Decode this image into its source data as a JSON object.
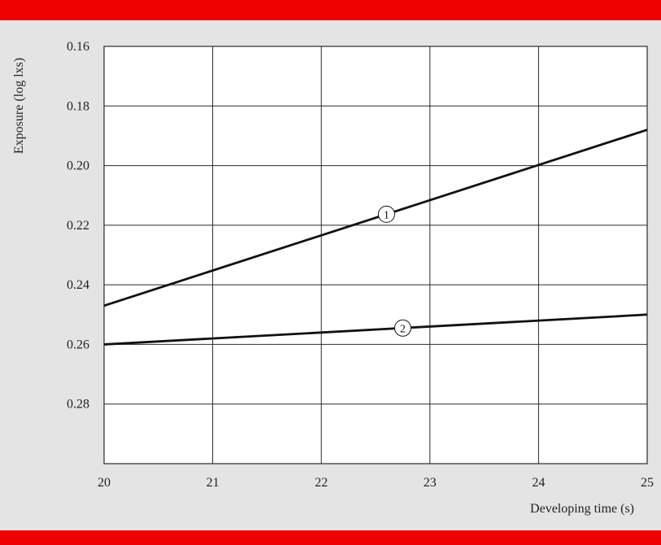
{
  "colors": {
    "banner": "#ee0000",
    "background": "#e4e4e4",
    "plot_background": "#ffffff",
    "grid": "#2a2a2a",
    "line": "#111111"
  },
  "chart_data": {
    "type": "line",
    "title": "",
    "xlabel": "Developing time (s)",
    "ylabel": "Exposure (log lxs)",
    "xlim": [
      20,
      25
    ],
    "ylim": [
      0.3,
      0.16
    ],
    "y_inverted": true,
    "x_ticks": [
      "20",
      "21",
      "22",
      "23",
      "24",
      "25"
    ],
    "y_ticks": [
      "0.16",
      "0.18",
      "0.20",
      "0.22",
      "0.24",
      "0.26",
      "0.28"
    ],
    "grid": true,
    "legend": "none",
    "series": [
      {
        "label": "1",
        "x": [
          20,
          25
        ],
        "y": [
          0.247,
          0.188
        ]
      },
      {
        "label": "2",
        "x": [
          20,
          25
        ],
        "y": [
          0.26,
          0.25
        ]
      }
    ]
  }
}
